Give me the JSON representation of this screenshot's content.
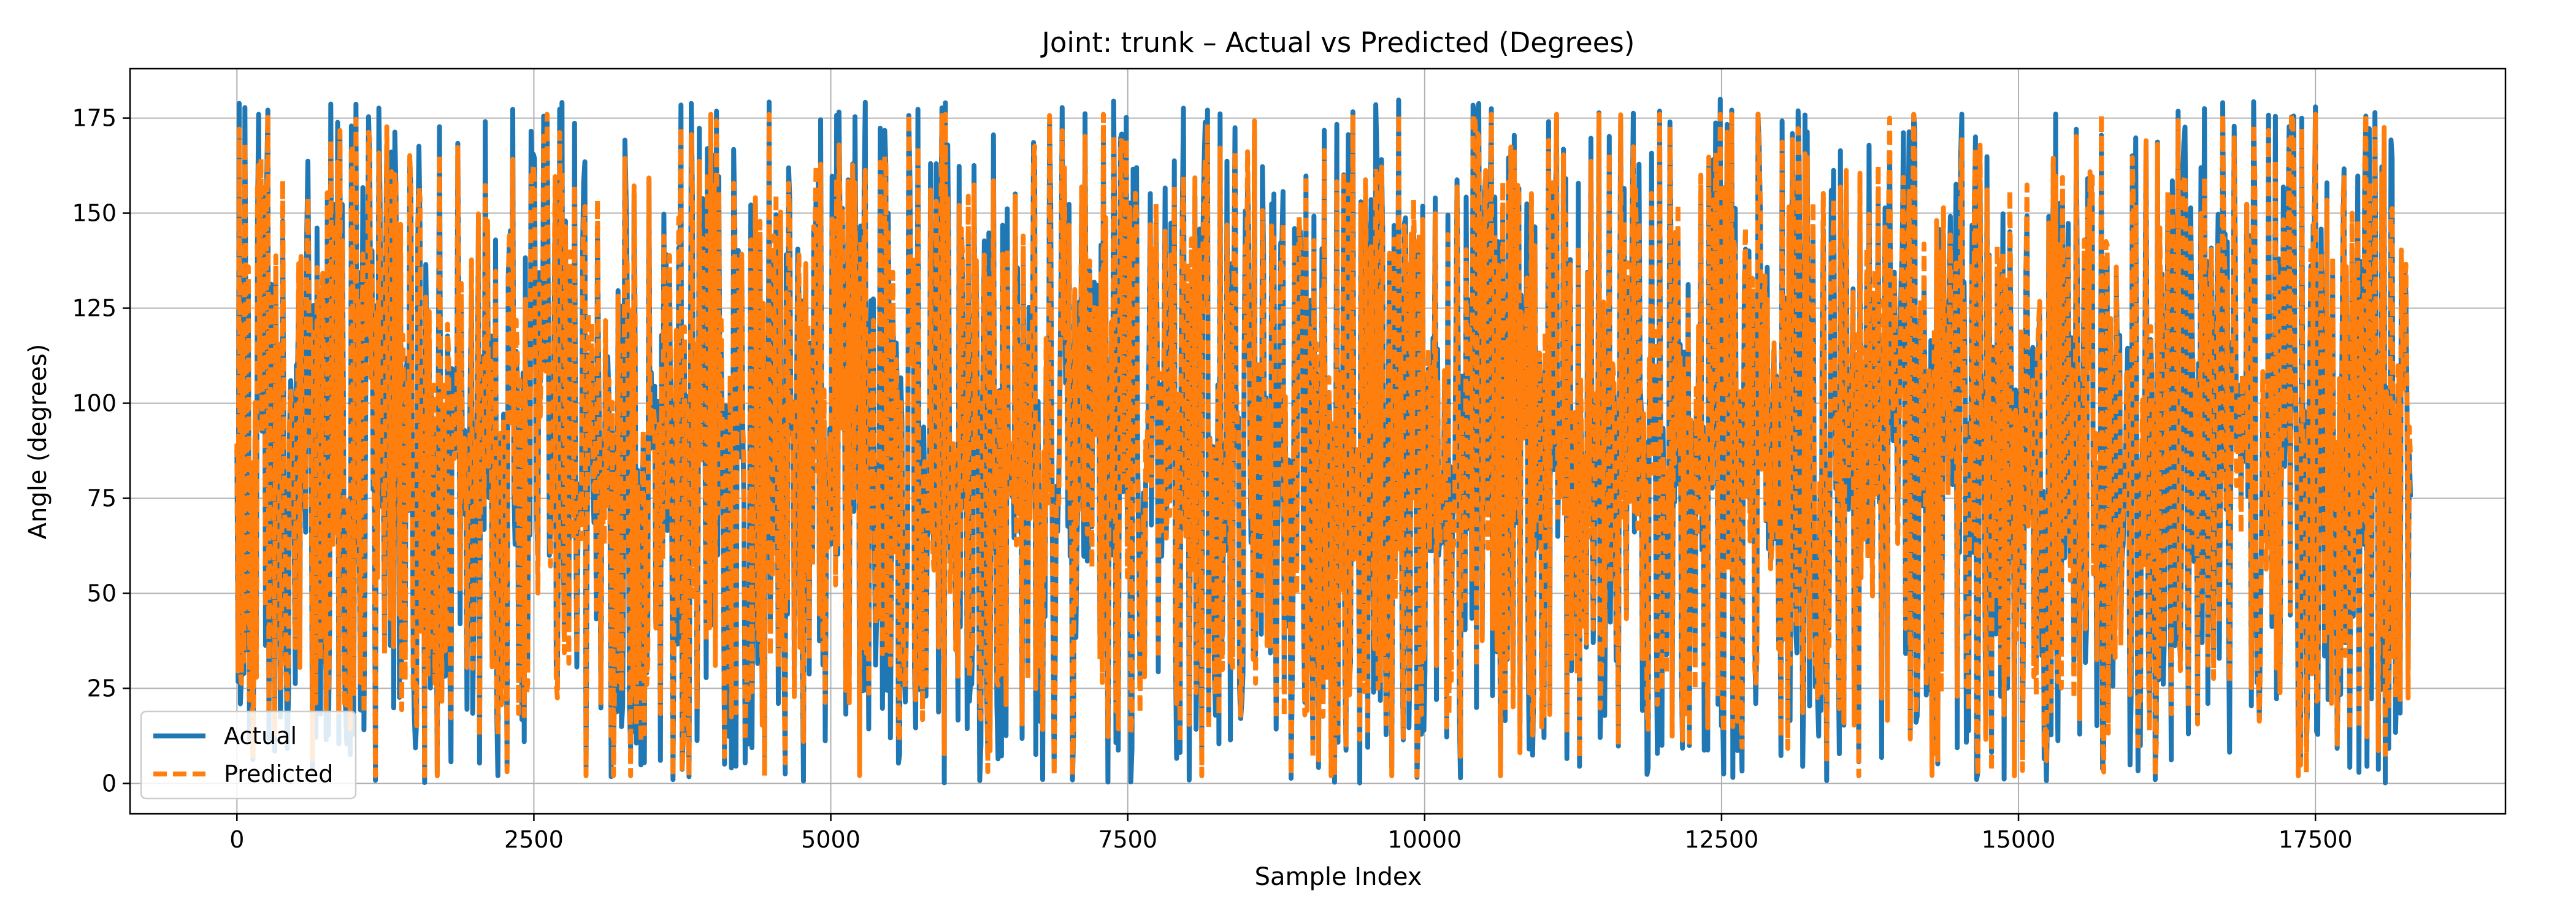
{
  "chart_data": {
    "type": "line",
    "title": "Joint: trunk – Actual vs Predicted (Degrees)",
    "xlabel": "Sample Index",
    "ylabel": "Angle (degrees)",
    "xlim": [
      -900,
      19100
    ],
    "ylim": [
      -8,
      188
    ],
    "x_ticks": [
      0,
      2500,
      5000,
      7500,
      10000,
      12500,
      15000,
      17500
    ],
    "x_tick_labels": [
      "0",
      "2500",
      "5000",
      "7500",
      "10000",
      "12500",
      "15000",
      "17500"
    ],
    "y_ticks": [
      0,
      25,
      50,
      75,
      100,
      125,
      150,
      175
    ],
    "y_tick_labels": [
      "0",
      "25",
      "50",
      "75",
      "100",
      "125",
      "150",
      "175"
    ],
    "grid": true,
    "legend_position": "lower-left",
    "sample_count": 18300,
    "value_range": [
      0,
      180
    ],
    "typical_center": 88,
    "series": [
      {
        "name": "Actual",
        "color": "#1f77b4",
        "style": "solid"
      },
      {
        "name": "Predicted",
        "color": "#ff7f0e",
        "style": "dashed"
      }
    ]
  }
}
